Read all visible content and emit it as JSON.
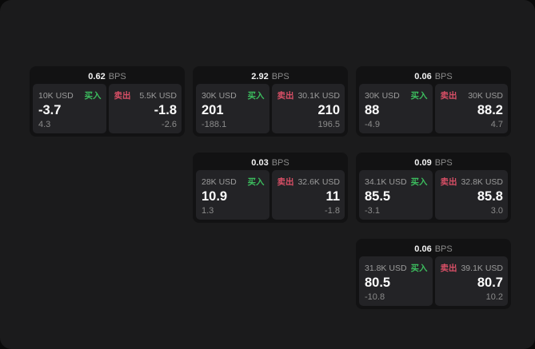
{
  "labels": {
    "buy": "买入",
    "sell": "卖出",
    "bps_suffix": "BPS"
  },
  "colors": {
    "page_bg": "#1b1b1c",
    "card_bg": "#121213",
    "panel_bg": "#232326",
    "buy_green": "#3cbd5e",
    "sell_red": "#d84f66"
  },
  "chart_data": {
    "type": "table",
    "note": "RFQ quote tiles"
  },
  "cards": [
    {
      "row": 1,
      "col": 1,
      "bps": "0.62",
      "buy": {
        "amount": "10K USD",
        "value": "-3.7",
        "delta": "4.3"
      },
      "sell": {
        "amount": "5.5K USD",
        "value": "-1.8",
        "delta": "-2.6"
      }
    },
    {
      "row": 1,
      "col": 2,
      "bps": "2.92",
      "buy": {
        "amount": "30K USD",
        "value": "201",
        "delta": "-188.1"
      },
      "sell": {
        "amount": "30.1K USD",
        "value": "210",
        "delta": "196.5"
      }
    },
    {
      "row": 1,
      "col": 3,
      "bps": "0.06",
      "buy": {
        "amount": "30K USD",
        "value": "88",
        "delta": "-4.9"
      },
      "sell": {
        "amount": "30K USD",
        "value": "88.2",
        "delta": "4.7"
      }
    },
    {
      "row": 2,
      "col": 2,
      "bps": "0.03",
      "buy": {
        "amount": "28K USD",
        "value": "10.9",
        "delta": "1.3"
      },
      "sell": {
        "amount": "32.6K USD",
        "value": "11",
        "delta": "-1.8"
      }
    },
    {
      "row": 2,
      "col": 3,
      "bps": "0.09",
      "buy": {
        "amount": "34.1K USD",
        "value": "85.5",
        "delta": "-3.1"
      },
      "sell": {
        "amount": "32.8K USD",
        "value": "85.8",
        "delta": "3.0"
      }
    },
    {
      "row": 3,
      "col": 3,
      "bps": "0.06",
      "buy": {
        "amount": "31.8K USD",
        "value": "80.5",
        "delta": "-10.8"
      },
      "sell": {
        "amount": "39.1K USD",
        "value": "80.7",
        "delta": "10.2"
      }
    }
  ]
}
